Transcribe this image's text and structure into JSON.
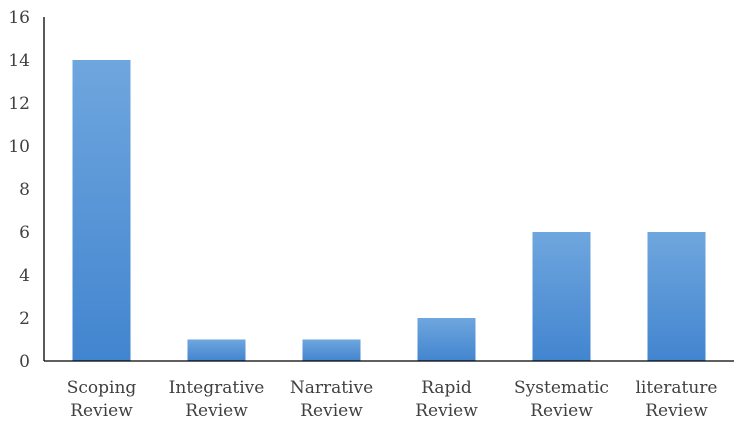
{
  "chart_data": {
    "type": "bar",
    "categories": [
      [
        "Scoping",
        "Review"
      ],
      [
        "Integrative",
        "Review"
      ],
      [
        "Narrative",
        "Review"
      ],
      [
        "Rapid",
        "Review"
      ],
      [
        "Systematic",
        "Review"
      ],
      [
        "literature",
        "Review"
      ]
    ],
    "values": [
      14,
      1,
      1,
      2,
      6,
      6
    ],
    "title": "",
    "xlabel": "",
    "ylabel": "",
    "ylim": [
      0,
      16
    ],
    "yticks": [
      0,
      2,
      4,
      6,
      8,
      10,
      12,
      14,
      16
    ],
    "grid": false,
    "legend": "none",
    "bar_color_top": "#6fa6de",
    "bar_color_bottom": "#4285cf"
  }
}
